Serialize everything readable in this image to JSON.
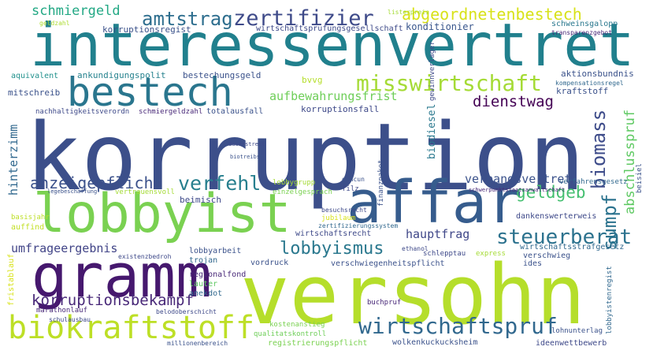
{
  "words": [
    {
      "id": "korruption",
      "text": "korruption",
      "color": "#3c4f8a"
    },
    {
      "id": "interessenvertret",
      "text": "interessenvertret",
      "color": "#21808d"
    },
    {
      "id": "versohn",
      "text": "versohn",
      "color": "#b5de2b"
    },
    {
      "id": "gramm",
      "text": "gramm",
      "color": "#46186e"
    },
    {
      "id": "lobbyist",
      "text": "lobbyist",
      "color": "#7ad151"
    },
    {
      "id": "affar",
      "text": "affar",
      "color": "#365c8d"
    },
    {
      "id": "bestech",
      "text": "bestech",
      "color": "#2a768e"
    },
    {
      "id": "biokraftstoff",
      "text": "biokraftstoff",
      "color": "#bddf26"
    },
    {
      "id": "misswirtschaft",
      "text": "misswirtschaft",
      "color": "#a5db36"
    },
    {
      "id": "zertifizier",
      "text": "zertifizier",
      "color": "#3e4a89"
    },
    {
      "id": "amtstrag",
      "text": "amtstrag",
      "color": "#2e6e8e"
    },
    {
      "id": "abgeordnetenbestech",
      "text": "abgeordnetenbestech",
      "color": "#d8e219"
    },
    {
      "id": "schmiergeld",
      "text": "schmiergeld",
      "color": "#22a884"
    },
    {
      "id": "steuerberat",
      "text": "steuerberat",
      "color": "#2c728e"
    },
    {
      "id": "wirtschaftspruf",
      "text": "wirtschaftspruf",
      "color": "#31688e"
    },
    {
      "id": "lobbyismus",
      "text": "lobbyismus",
      "color": "#2a788e"
    },
    {
      "id": "korruptionsbekampf",
      "text": "korruptionsbekampf",
      "color": "#482878"
    },
    {
      "id": "anzeigepflicht",
      "text": "anzeigepflicht",
      "color": "#3b518b"
    },
    {
      "id": "verfehl",
      "text": "verfehl",
      "color": "#277f8e"
    },
    {
      "id": "geldgeb",
      "text": "geldgeb",
      "color": "#44bf70"
    },
    {
      "id": "umfrageergebnis",
      "text": "umfrageergebnis",
      "color": "#414487"
    },
    {
      "id": "dienstwag",
      "text": "dienstwag",
      "color": "#440154"
    },
    {
      "id": "biomass",
      "text": "biomass",
      "color": "#3e4c8a"
    },
    {
      "id": "sumpf",
      "text": "sumpf",
      "color": "#2c738e"
    },
    {
      "id": "abschlusspruf",
      "text": "abschlusspruf",
      "color": "#5ec962"
    },
    {
      "id": "aufbewahrungsfrist",
      "text": "aufbewahrungsfrist",
      "color": "#6ece58"
    },
    {
      "id": "verbandsvertret",
      "text": "verbandsvertret",
      "color": "#3b528b"
    },
    {
      "id": "hauptfrag",
      "text": "hauptfrag",
      "color": "#3f4788"
    },
    {
      "id": "hinterzimm",
      "text": "hinterzimm",
      "color": "#31688e"
    },
    {
      "id": "biodiesel",
      "text": "biodiesel",
      "color": "#2a788e"
    },
    {
      "id": "konditionier",
      "text": "konditionier",
      "color": "#39568c"
    },
    {
      "id": "korruptionsregist",
      "text": "korruptionsregist",
      "color": "#3b528b"
    },
    {
      "id": "wirtschaftsprufungsgesellschaft",
      "text": "wirtschaftsprufungsgesellschaft",
      "color": "#3e4a89"
    },
    {
      "id": "ankundigungspolit",
      "text": "ankundigungspolit",
      "color": "#26828e"
    },
    {
      "id": "bestechungsgeld",
      "text": "bestechungsgeld",
      "color": "#3b528b"
    },
    {
      "id": "aquivalent",
      "text": "aquivalent",
      "color": "#21918c"
    },
    {
      "id": "aktionsbundnis",
      "text": "aktionsbundnis",
      "color": "#3b528b"
    },
    {
      "id": "schweinsgalopp",
      "text": "schweinsgalopp",
      "color": "#2a788e"
    },
    {
      "id": "mitschreib",
      "text": "mitschreib",
      "color": "#3b528b"
    },
    {
      "id": "nachhaltigkeitsverordn",
      "text": "nachhaltigkeitsverordn",
      "color": "#3e4989"
    },
    {
      "id": "schmiergeldzahl",
      "text": "schmiergeldzahl",
      "color": "#482878"
    },
    {
      "id": "totalausfall",
      "text": "totalausfall",
      "color": "#3b528b"
    },
    {
      "id": "korruptionsfall",
      "text": "korruptionsfall",
      "color": "#3e4989"
    },
    {
      "id": "bvvg",
      "text": "bvvg",
      "color": "#b5de2b"
    },
    {
      "id": "kraftstoff",
      "text": "kraftstoff",
      "color": "#3b528b"
    },
    {
      "id": "kompensationsregel",
      "text": "kompensationsregel",
      "color": "#31688e"
    },
    {
      "id": "gewinnverlager",
      "text": "gewinnverlager",
      "color": "#3e4989"
    },
    {
      "id": "listerpreis",
      "text": "listerpreis",
      "color": "#a5db36"
    },
    {
      "id": "geldzahl",
      "text": "geldzahl",
      "color": "#addc30"
    },
    {
      "id": "transparenzgebot",
      "text": "transparenzgebot",
      "color": "#482878"
    },
    {
      "id": "beimisch",
      "text": "beimisch",
      "color": "#3e4989"
    },
    {
      "id": "lobbygrupp",
      "text": "lobbygrupp",
      "color": "#a5db36"
    },
    {
      "id": "einzelgesprach",
      "text": "einzelgesprach",
      "color": "#7ad151"
    },
    {
      "id": "vertrauensvoll",
      "text": "vertrauensvoll",
      "color": "#a5db36"
    },
    {
      "id": "legebeschaffung",
      "text": "legebeschaffung",
      "color": "#3b528b"
    },
    {
      "id": "basisjahr",
      "text": "basisjahr",
      "color": "#bddf26"
    },
    {
      "id": "auffind",
      "text": "auffind",
      "color": "#c2df23"
    },
    {
      "id": "wirtschaftsrecht",
      "text": "wirtschaftsrecht",
      "color": "#3e4989"
    },
    {
      "id": "lobbyarbeit",
      "text": "lobbyarbeit",
      "color": "#3b528b"
    },
    {
      "id": "trojan",
      "text": "trojan",
      "color": "#31688e"
    },
    {
      "id": "existenzbedroh",
      "text": "existenzbedroh",
      "color": "#3e4989"
    },
    {
      "id": "vordruck",
      "text": "vordruck",
      "color": "#3b528b"
    },
    {
      "id": "regionalfond",
      "text": "regionalfond",
      "color": "#482878"
    },
    {
      "id": "lauter",
      "text": "lauter",
      "color": "#5ec962"
    },
    {
      "id": "anekdot",
      "text": "anekdot",
      "color": "#31688e"
    },
    {
      "id": "oberschicht",
      "text": "oberschicht",
      "color": "#3e4989"
    },
    {
      "id": "belod",
      "text": "belod",
      "color": "#3e4989"
    },
    {
      "id": "fristablauf",
      "text": "fristablauf",
      "color": "#d8e219"
    },
    {
      "id": "marathonlauf",
      "text": "marathonlauf",
      "color": "#482878"
    },
    {
      "id": "schulausbau",
      "text": "schulausbau",
      "color": "#3e4989"
    },
    {
      "id": "millionenbereich",
      "text": "millionenbereich",
      "color": "#3b528b"
    },
    {
      "id": "kostenanstieg",
      "text": "kostenanstieg",
      "color": "#7ad151"
    },
    {
      "id": "qualitatskontroll",
      "text": "qualitatskontroll",
      "color": "#6ece58"
    },
    {
      "id": "registrierungspflicht",
      "text": "registrierungspflicht",
      "color": "#7ad151"
    },
    {
      "id": "wolkenkuckucksheim",
      "text": "wolkenkuckucksheim",
      "color": "#3b528b"
    },
    {
      "id": "ideenwettbewerb",
      "text": "ideenwettbewerb",
      "color": "#3e4989"
    },
    {
      "id": "lohnunterlag",
      "text": "lohnunterlag",
      "color": "#3b528b"
    },
    {
      "id": "lobbyistenregist",
      "text": "lobbyistenregist",
      "color": "#31688e"
    },
    {
      "id": "verschwiegenheitspflicht",
      "text": "verschwiegenheitspflicht",
      "color": "#3b528b"
    },
    {
      "id": "buchpruf",
      "text": "buchpruf",
      "color": "#482878"
    },
    {
      "id": "ides",
      "text": "ides",
      "color": "#3b528b"
    },
    {
      "id": "express",
      "text": "express",
      "color": "#a5db36"
    },
    {
      "id": "schlepptau",
      "text": "schlepptau",
      "color": "#3e4989"
    },
    {
      "id": "ethanol",
      "text": "ethanol",
      "color": "#3e4989"
    },
    {
      "id": "wirtschaftsstrafgesetz",
      "text": "wirtschaftsstrafgesetz",
      "color": "#31688e"
    },
    {
      "id": "verschwieg",
      "text": "verschwieg",
      "color": "#3b528b"
    },
    {
      "id": "dankenswerterweis",
      "text": "dankenswerterweis",
      "color": "#3e4989"
    },
    {
      "id": "schwerpunktstaatsanwaltschaft",
      "text": "schwerpunktstaatsanwaltschaft",
      "color": "#482878"
    },
    {
      "id": "beisiel",
      "text": "beisiel",
      "color": "#3b528b"
    },
    {
      "id": "verfahrensgesetz",
      "text": "verfahrensgesetz",
      "color": "#31688e"
    },
    {
      "id": "besuchsrecht",
      "text": "besuchsrecht",
      "color": "#3e4989"
    },
    {
      "id": "jubilaum",
      "text": "jubilaum",
      "color": "#d8e219"
    },
    {
      "id": "finanzpaket",
      "text": "finanzpaket",
      "color": "#3b528b"
    },
    {
      "id": "zertifizierungssystem",
      "text": "zertifizierungssystem",
      "color": "#31688e"
    },
    {
      "id": "gencun",
      "text": "gencun",
      "color": "#3b528b"
    },
    {
      "id": "filz",
      "text": "filz",
      "color": "#3e4989"
    },
    {
      "id": "dauerstreit",
      "text": "dauerstreit",
      "color": "#3e4989"
    },
    {
      "id": "biotreibst",
      "text": "biotreibst",
      "color": "#3b528b"
    }
  ]
}
